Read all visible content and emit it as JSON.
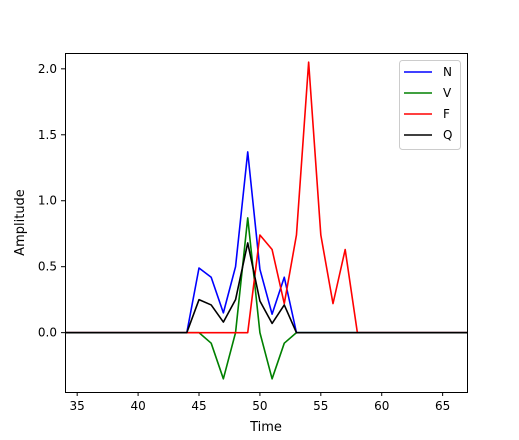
{
  "chart_data": {
    "type": "line",
    "title": "",
    "xlabel": "Time",
    "ylabel": "Amplitude",
    "xlim": [
      34,
      67
    ],
    "ylim": [
      -0.45,
      2.12
    ],
    "xticks": [
      35,
      40,
      45,
      50,
      55,
      60,
      65
    ],
    "yticks": [
      0.0,
      0.5,
      1.0,
      1.5,
      2.0
    ],
    "ytick_labels": [
      "0.0",
      "0.5",
      "1.0",
      "1.5",
      "2.0"
    ],
    "grid": false,
    "legend_position": "upper right",
    "x": [
      34,
      35,
      36,
      37,
      38,
      39,
      40,
      41,
      42,
      43,
      44,
      45,
      46,
      47,
      48,
      49,
      50,
      51,
      52,
      53,
      54,
      55,
      56,
      57,
      58,
      59,
      60,
      61,
      62,
      63,
      64,
      65,
      66,
      67
    ],
    "series": [
      {
        "name": "N",
        "color": "#0000ff",
        "values": [
          0,
          0,
          0,
          0,
          0,
          0,
          0,
          0,
          0,
          0,
          0,
          0.49,
          0.42,
          0.15,
          0.5,
          1.37,
          0.48,
          0.14,
          0.42,
          0,
          0,
          0,
          0,
          0,
          0,
          0,
          0,
          0,
          0,
          0,
          0,
          0,
          0,
          0
        ]
      },
      {
        "name": "V",
        "color": "#008000",
        "values": [
          0,
          0,
          0,
          0,
          0,
          0,
          0,
          0,
          0,
          0,
          0,
          0,
          -0.08,
          -0.35,
          0,
          0.87,
          0,
          -0.35,
          -0.08,
          0,
          0,
          0,
          0,
          0,
          0,
          0,
          0,
          0,
          0,
          0,
          0,
          0,
          0,
          0
        ]
      },
      {
        "name": "F",
        "color": "#ff0000",
        "values": [
          0,
          0,
          0,
          0,
          0,
          0,
          0,
          0,
          0,
          0,
          0,
          0,
          0,
          0,
          0,
          0,
          0.74,
          0.63,
          0.22,
          0.74,
          2.05,
          0.74,
          0.22,
          0.63,
          0,
          0,
          0,
          0,
          0,
          0,
          0,
          0,
          0,
          0
        ]
      },
      {
        "name": "Q",
        "color": "#000000",
        "values": [
          0,
          0,
          0,
          0,
          0,
          0,
          0,
          0,
          0,
          0,
          0,
          0.25,
          0.21,
          0.08,
          0.25,
          0.68,
          0.24,
          0.07,
          0.21,
          0,
          0,
          0,
          0,
          0,
          0,
          0,
          0,
          0,
          0,
          0,
          0,
          0,
          0,
          0
        ]
      }
    ]
  }
}
